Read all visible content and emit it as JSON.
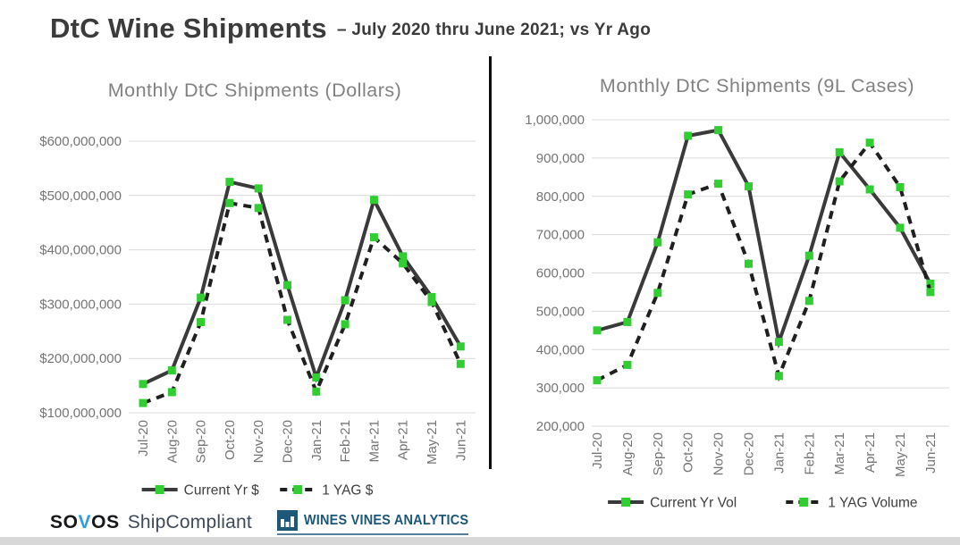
{
  "header": {
    "title": "DtC Wine Shipments",
    "subtitle": "– July 2020 thru June 2021; vs Yr Ago"
  },
  "chart_data": [
    {
      "type": "line",
      "title": "Monthly DtC Shipments (Dollars)",
      "xlabel": "",
      "ylabel": "",
      "grid": true,
      "legend_position": "bottom",
      "categories": [
        "Jul-20",
        "Aug-20",
        "Sep-20",
        "Oct-20",
        "Nov-20",
        "Dec-20",
        "Jan-21",
        "Feb-21",
        "Mar-21",
        "Apr-21",
        "May-21",
        "Jun-21"
      ],
      "series": [
        {
          "name": "Current Yr $",
          "line_style": "solid",
          "values": [
            153000000,
            178000000,
            312000000,
            525000000,
            513000000,
            335000000,
            165000000,
            307000000,
            492000000,
            388000000,
            313000000,
            222000000
          ]
        },
        {
          "name": "1 YAG $",
          "line_style": "dashed",
          "values": [
            118000000,
            138000000,
            267000000,
            486000000,
            477000000,
            271000000,
            139000000,
            263000000,
            423000000,
            375000000,
            304000000,
            190000000
          ]
        }
      ],
      "ylim": [
        100000000,
        600000000
      ],
      "ytick_step": 100000000,
      "ytick_prefix": "$"
    },
    {
      "type": "line",
      "title": "Monthly DtC Shipments (9L Cases)",
      "xlabel": "",
      "ylabel": "",
      "grid": true,
      "legend_position": "bottom",
      "categories": [
        "Jul-20",
        "Aug-20",
        "Sep-20",
        "Oct-20",
        "Nov-20",
        "Dec-20",
        "Jan-21",
        "Feb-21",
        "Mar-21",
        "Apr-21",
        "May-21",
        "Jun-21"
      ],
      "series": [
        {
          "name": "Current Yr Vol",
          "line_style": "solid",
          "values": [
            450000,
            472000,
            680000,
            958000,
            973000,
            826000,
            420000,
            645000,
            915000,
            818000,
            718000,
            572000
          ]
        },
        {
          "name": "1 YAG Volume",
          "line_style": "dashed",
          "values": [
            320000,
            360000,
            548000,
            805000,
            833000,
            624000,
            331000,
            527000,
            839000,
            940000,
            824000,
            550000
          ]
        }
      ],
      "ylim": [
        200000,
        1000000
      ],
      "ytick_step": 100000,
      "ytick_prefix": ""
    }
  ],
  "colors": {
    "solid_line": "#3a3a3a",
    "dashed_line": "#1f1f1f",
    "marker_green": "#32cd32",
    "chart_title": "#828282",
    "tick_label": "#757575",
    "legend_text": "#3f3f3f",
    "gridline": "#d9d9d9",
    "page_title": "#3b3b3b",
    "divider": "#0d0d0d",
    "wva_blue": "#1d5878",
    "sovos_blue": "#2e9fda",
    "shipcompliant_gray": "#3e4a59",
    "bottom_bar": "#d8d8d8"
  },
  "footer": {
    "sovos": {
      "pre": "SO",
      "v": "V",
      "post": "OS"
    },
    "shipcompliant": "ShipCompliant",
    "wva": "WINES VINES ANALYTICS"
  }
}
